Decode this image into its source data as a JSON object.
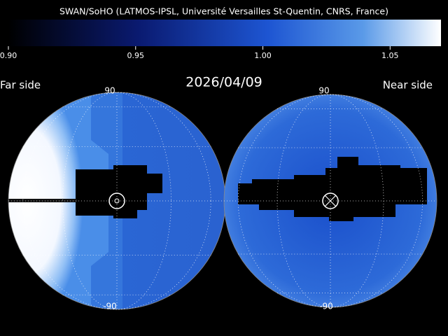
{
  "header": {
    "title": "SWAN/SoHO (LATMOS-IPSL, Université Versailles St-Quentin, CNRS, France)",
    "date": "2026/04/09"
  },
  "colorbar": {
    "range": [
      0.9,
      1.07
    ],
    "ticks": [
      {
        "value": 0.9,
        "label": "0.90"
      },
      {
        "value": 0.95,
        "label": "0.95"
      },
      {
        "value": 1.0,
        "label": "1.00"
      },
      {
        "value": 1.05,
        "label": "1.05"
      }
    ]
  },
  "panels": [
    {
      "label": "Far side",
      "top": "90",
      "bottom": "-90"
    },
    {
      "label": "Near side",
      "top": "90",
      "bottom": "-90"
    }
  ]
}
